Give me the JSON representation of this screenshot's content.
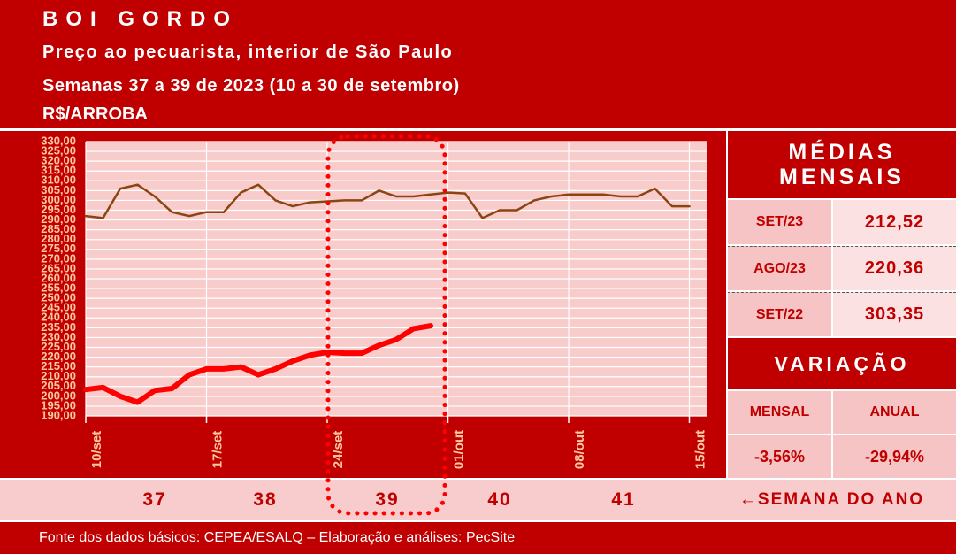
{
  "header": {
    "title": "BOI GORDO",
    "subtitle": "Preço ao pecuarista, interior de São Paulo",
    "period": "Semanas 37 a 39 de 2023 (10 a 30 de setembro)",
    "unit": "R$/ARROBA"
  },
  "chart_data": {
    "type": "line",
    "x": [
      0,
      1,
      2,
      3,
      4,
      5,
      6,
      7,
      8,
      9,
      10,
      11,
      12,
      13,
      14,
      15,
      16,
      17,
      18,
      19,
      20,
      21,
      22,
      23,
      24,
      25,
      26,
      27,
      28,
      29,
      30,
      31,
      32,
      33,
      34,
      35
    ],
    "series": [
      {
        "color": "#8b4513",
        "values": [
          292,
          291,
          306,
          308,
          302,
          294,
          292,
          294,
          294,
          304,
          308,
          300,
          297,
          299,
          299.5,
          300,
          300,
          305,
          302,
          302,
          303,
          304,
          303.5,
          291,
          295,
          295,
          300,
          302,
          303,
          303,
          303,
          302,
          302,
          306,
          297,
          297
        ]
      },
      {
        "color": "#ff0000",
        "values": [
          203.5,
          204.5,
          200,
          197,
          203,
          204,
          211,
          214,
          214,
          215,
          211,
          214,
          218,
          221,
          222.5,
          222,
          222,
          226,
          229,
          234.5,
          236,
          null,
          null,
          null,
          null,
          null,
          null,
          null,
          null,
          null,
          null,
          null,
          null,
          null,
          null,
          null
        ]
      }
    ],
    "xlim": [
      0,
      36
    ],
    "xticks": [
      {
        "value": 0,
        "label": "10/set"
      },
      {
        "value": 7,
        "label": "17/set"
      },
      {
        "value": 14,
        "label": "24/set"
      },
      {
        "value": 21,
        "label": "01/out"
      },
      {
        "value": 28,
        "label": "08/out"
      },
      {
        "value": 35,
        "label": "15/out"
      }
    ],
    "ylim": [
      190,
      330
    ],
    "yticks": [
      {
        "value": 190,
        "label": "190,00"
      },
      {
        "value": 195,
        "label": "195,00"
      },
      {
        "value": 200,
        "label": "200,00"
      },
      {
        "value": 205,
        "label": "205,00"
      },
      {
        "value": 210,
        "label": "210,00"
      },
      {
        "value": 215,
        "label": "215,00"
      },
      {
        "value": 220,
        "label": "220,00"
      },
      {
        "value": 225,
        "label": "225,00"
      },
      {
        "value": 230,
        "label": "230,00"
      },
      {
        "value": 235,
        "label": "235,00"
      },
      {
        "value": 240,
        "label": "240,00"
      },
      {
        "value": 245,
        "label": "245,00"
      },
      {
        "value": 250,
        "label": "250,00"
      },
      {
        "value": 255,
        "label": "255,00"
      },
      {
        "value": 260,
        "label": "260,00"
      },
      {
        "value": 265,
        "label": "265,00"
      },
      {
        "value": 270,
        "label": "270,00"
      },
      {
        "value": 275,
        "label": "275,00"
      },
      {
        "value": 280,
        "label": "280,00"
      },
      {
        "value": 285,
        "label": "285,00"
      },
      {
        "value": 290,
        "label": "290,00"
      },
      {
        "value": 295,
        "label": "295,00"
      },
      {
        "value": 300,
        "label": "300,00"
      },
      {
        "value": 305,
        "label": "305,00"
      },
      {
        "value": 310,
        "label": "310,00"
      },
      {
        "value": 315,
        "label": "315,00"
      },
      {
        "value": 320,
        "label": "320,00"
      },
      {
        "value": 325,
        "label": "325,00"
      },
      {
        "value": 330,
        "label": "330,00"
      }
    ],
    "grid": true
  },
  "panel": {
    "title": "MÉDIAS MENSAIS",
    "rows": [
      [
        "SET/23",
        "212,52"
      ],
      [
        "AGO/23",
        "220,36"
      ],
      [
        "SET/22",
        "303,35"
      ]
    ],
    "variation_title": "VARIAÇÃO",
    "variation_headers": [
      "MENSAL",
      "ANUAL"
    ],
    "variation_values": [
      "-3,56%",
      "-29,94%"
    ]
  },
  "weeks": {
    "numbers": [
      37,
      38,
      39,
      40,
      41
    ],
    "label": "←SEMANA DO ANO"
  },
  "footer": "Fonte dos dados básicos: CEPEA/ESALQ – Elaboração e análises: PecSite"
}
